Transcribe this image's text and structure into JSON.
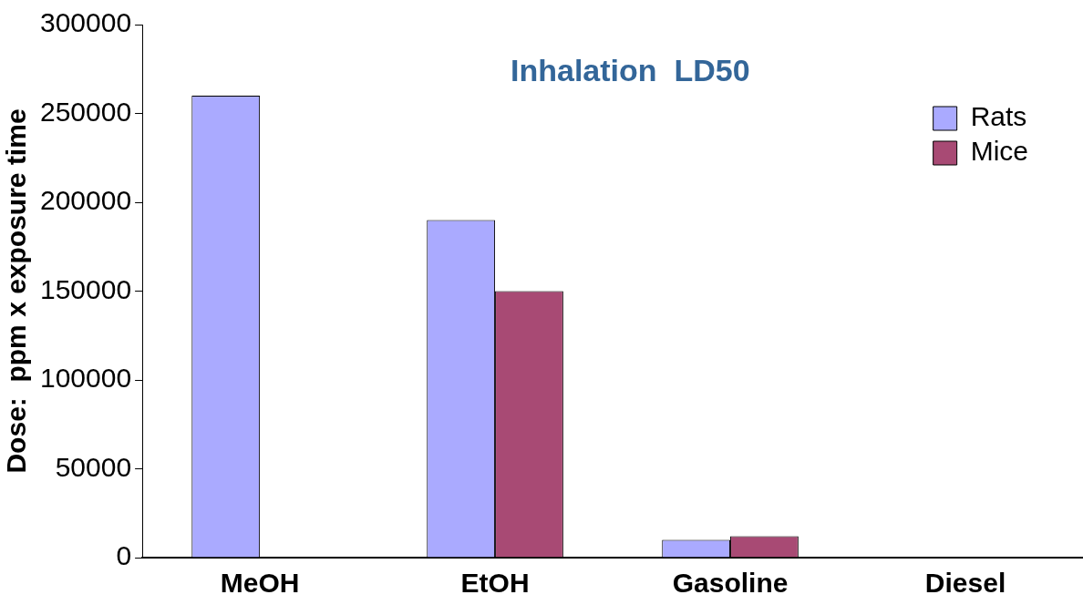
{
  "chart_data": {
    "type": "bar",
    "title": "Inhalation  LD50",
    "ylabel": "Dose:  ppm x exposure time",
    "categories": [
      "MeOH",
      "EtOH",
      "Gasoline",
      "Diesel"
    ],
    "series": [
      {
        "name": "Rats",
        "color": "#aaaaff",
        "values": [
          260000,
          190000,
          10000,
          null
        ]
      },
      {
        "name": "Mice",
        "color": "#a84a74",
        "values": [
          null,
          150000,
          12000,
          null
        ]
      }
    ],
    "ylim": [
      0,
      300000
    ],
    "yticks": [
      0,
      50000,
      100000,
      150000,
      200000,
      250000,
      300000
    ],
    "grid": false,
    "legend": "top right"
  }
}
